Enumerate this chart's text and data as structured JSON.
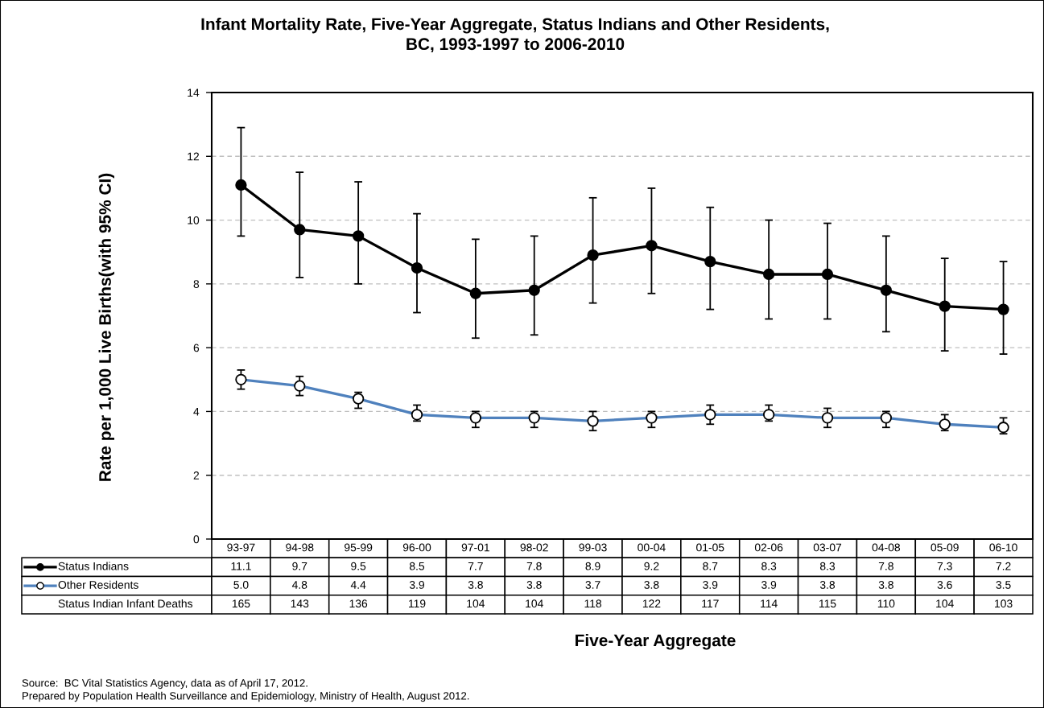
{
  "chart_data": [
    {
      "type": "line",
      "title": "Infant Mortality Rate, Five-Year Aggregate, Status Indians and Other Residents,\nBC, 1993-1997 to 2006-2010",
      "xlabel": "Five-Year Aggregate",
      "ylabel": "Rate per 1,000 Live Births(with 95% CI)",
      "categories": [
        "93-97",
        "94-98",
        "95-99",
        "96-00",
        "97-01",
        "98-02",
        "99-03",
        "00-04",
        "01-05",
        "02-06",
        "03-07",
        "04-08",
        "05-09",
        "06-10"
      ],
      "series": [
        {
          "name": "Status Indians",
          "color": "#000000",
          "values": [
            11.1,
            9.7,
            9.5,
            8.5,
            7.7,
            7.8,
            8.9,
            9.2,
            8.7,
            8.3,
            8.3,
            7.8,
            7.3,
            7.2
          ],
          "value_labels": [
            "11.1",
            "9.7",
            "9.5",
            "8.5",
            "7.7",
            "7.8",
            "8.9",
            "9.2",
            "8.7",
            "8.3",
            "8.3",
            "7.8",
            "7.3",
            "7.2"
          ],
          "errors": [
            [
              9.5,
              12.9
            ],
            [
              8.2,
              11.5
            ],
            [
              8.0,
              11.2
            ],
            [
              7.1,
              10.2
            ],
            [
              6.3,
              9.4
            ],
            [
              6.4,
              9.5
            ],
            [
              7.4,
              10.7
            ],
            [
              7.7,
              11.0
            ],
            [
              7.2,
              10.4
            ],
            [
              6.9,
              10.0
            ],
            [
              6.9,
              9.9
            ],
            [
              6.5,
              9.5
            ],
            [
              5.9,
              8.8
            ],
            [
              5.8,
              8.7
            ]
          ]
        },
        {
          "name": "Other Residents",
          "color": "#4f81bd",
          "values": [
            5.0,
            4.8,
            4.4,
            3.9,
            3.8,
            3.8,
            3.7,
            3.8,
            3.9,
            3.9,
            3.8,
            3.8,
            3.6,
            3.5
          ],
          "value_labels": [
            "5.0",
            "4.8",
            "4.4",
            "3.9",
            "3.8",
            "3.8",
            "3.7",
            "3.8",
            "3.9",
            "3.9",
            "3.8",
            "3.8",
            "3.6",
            "3.5"
          ],
          "errors": [
            [
              4.7,
              5.3
            ],
            [
              4.5,
              5.1
            ],
            [
              4.1,
              4.6
            ],
            [
              3.7,
              4.2
            ],
            [
              3.5,
              4.0
            ],
            [
              3.5,
              4.0
            ],
            [
              3.4,
              4.0
            ],
            [
              3.5,
              4.0
            ],
            [
              3.6,
              4.2
            ],
            [
              3.7,
              4.2
            ],
            [
              3.5,
              4.1
            ],
            [
              3.5,
              4.0
            ],
            [
              3.4,
              3.9
            ],
            [
              3.3,
              3.8
            ]
          ]
        }
      ],
      "ylim": [
        0,
        14
      ],
      "yticks": [
        0,
        2,
        4,
        6,
        8,
        10,
        12,
        14
      ],
      "grid": "y",
      "legend": "bottom left",
      "marker": "circle",
      "line_style": "solid",
      "annotations": [
        "Source:  BC Vital Statistics Agency, data as of April 17, 2012.",
        "Prepared by Population Health Surveillance and Epidemiology, Ministry of Health, August 2012."
      ]
    },
    {
      "type": "other",
      "categories": [
        null,
        null,
        null,
        null,
        null,
        null,
        null,
        null,
        null,
        null,
        null,
        null,
        null,
        null
      ],
      "series": [
        {
          "name": "Status Indian Infant Deaths",
          "values": [
            165,
            143,
            136,
            119,
            104,
            104,
            118,
            122,
            117,
            114,
            115,
            110,
            104,
            103
          ]
        }
      ],
      "data_labels": true
    }
  ]
}
